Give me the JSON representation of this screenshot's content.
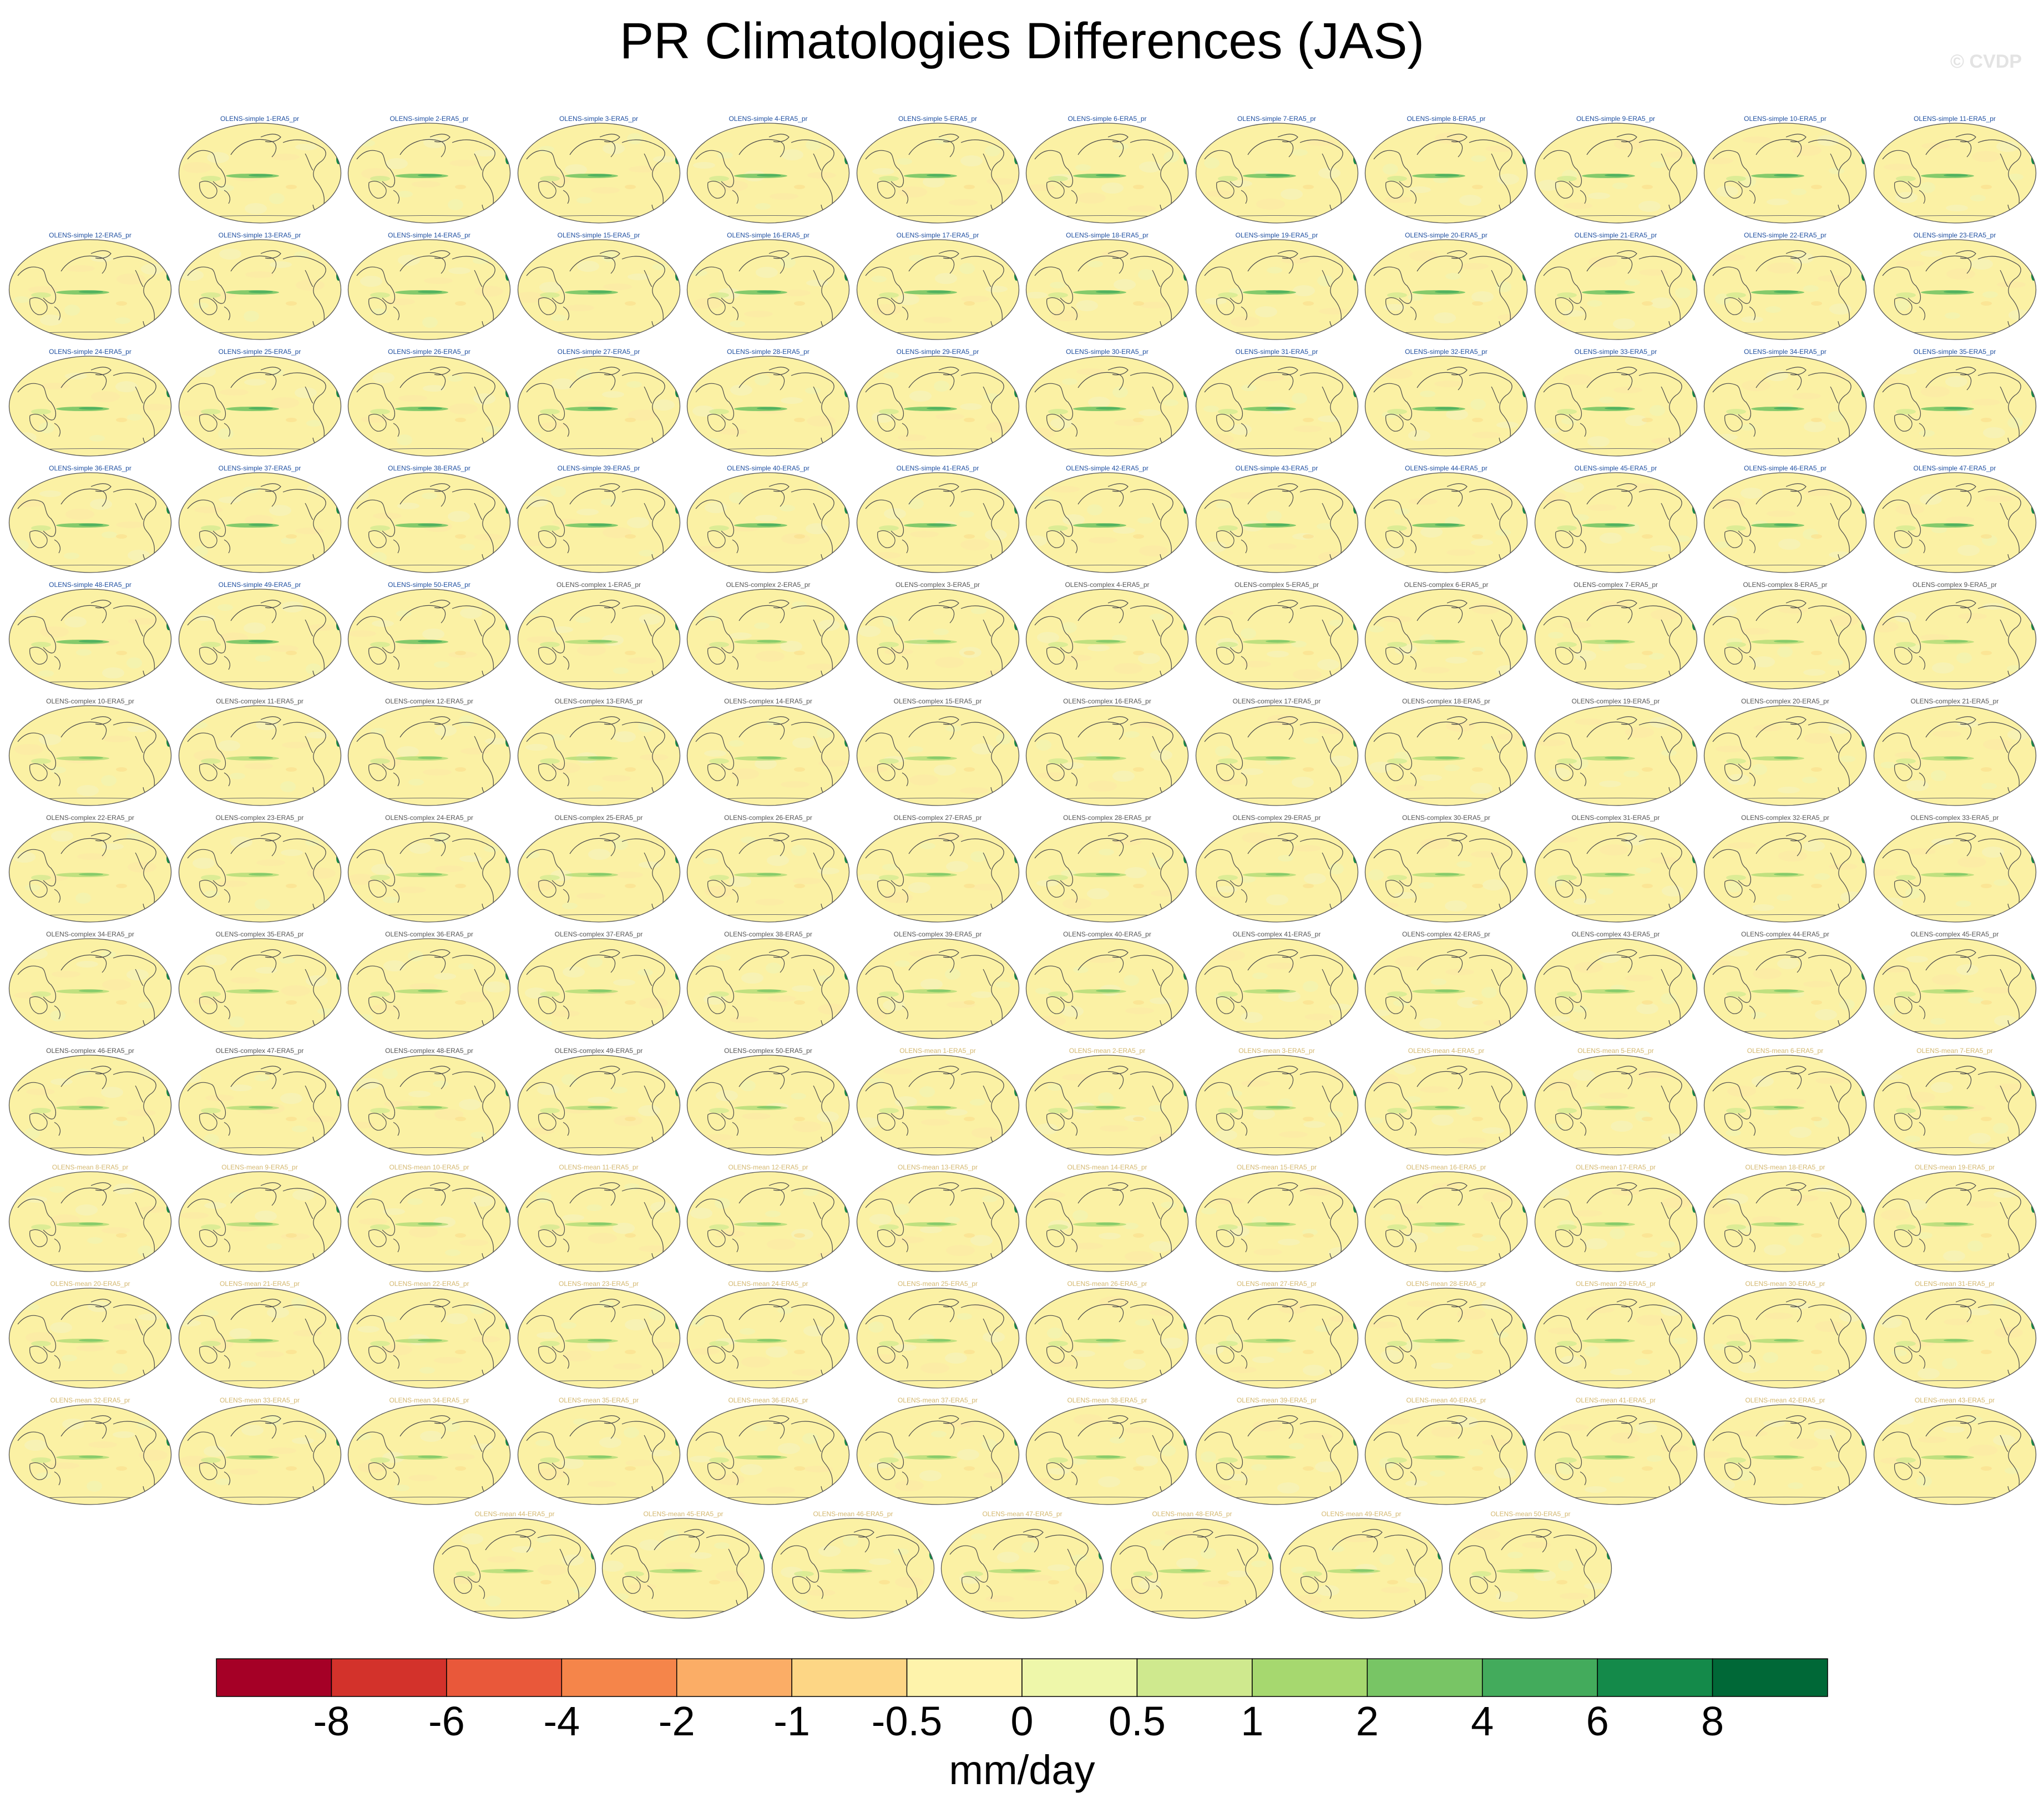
{
  "chart_data": {
    "type": "heatmap",
    "title": "PR Climatologies Differences (JAS)",
    "watermark": "© CVDP",
    "projection": "global map (Robinson-like), Pacific-centered",
    "panel_titles": [
      "OLENS-simple 1-ERA5_pr",
      "OLENS-simple 2-ERA5_pr",
      "OLENS-simple 3-ERA5_pr",
      "OLENS-simple 4-ERA5_pr",
      "OLENS-simple 5-ERA5_pr",
      "OLENS-simple 6-ERA5_pr",
      "OLENS-simple 7-ERA5_pr",
      "OLENS-simple 8-ERA5_pr",
      "OLENS-simple 9-ERA5_pr",
      "OLENS-simple 10-ERA5_pr",
      "OLENS-simple 11-ERA5_pr",
      "OLENS-simple 12-ERA5_pr",
      "OLENS-simple 13-ERA5_pr",
      "OLENS-simple 14-ERA5_pr",
      "OLENS-simple 15-ERA5_pr",
      "OLENS-simple 16-ERA5_pr",
      "OLENS-simple 17-ERA5_pr",
      "OLENS-simple 18-ERA5_pr",
      "OLENS-simple 19-ERA5_pr",
      "OLENS-simple 20-ERA5_pr",
      "OLENS-simple 21-ERA5_pr",
      "OLENS-simple 22-ERA5_pr",
      "OLENS-simple 23-ERA5_pr",
      "OLENS-simple 24-ERA5_pr",
      "OLENS-simple 25-ERA5_pr",
      "OLENS-simple 26-ERA5_pr",
      "OLENS-simple 27-ERA5_pr",
      "OLENS-simple 28-ERA5_pr",
      "OLENS-simple 29-ERA5_pr",
      "OLENS-simple 30-ERA5_pr",
      "OLENS-simple 31-ERA5_pr",
      "OLENS-simple 32-ERA5_pr",
      "OLENS-simple 33-ERA5_pr",
      "OLENS-simple 34-ERA5_pr",
      "OLENS-simple 35-ERA5_pr",
      "OLENS-simple 36-ERA5_pr",
      "OLENS-simple 37-ERA5_pr",
      "OLENS-simple 38-ERA5_pr",
      "OLENS-simple 39-ERA5_pr",
      "OLENS-simple 40-ERA5_pr",
      "OLENS-simple 41-ERA5_pr",
      "OLENS-simple 42-ERA5_pr",
      "OLENS-simple 43-ERA5_pr",
      "OLENS-simple 44-ERA5_pr",
      "OLENS-simple 45-ERA5_pr",
      "OLENS-simple 46-ERA5_pr",
      "OLENS-simple 47-ERA5_pr",
      "OLENS-simple 48-ERA5_pr",
      "OLENS-simple 49-ERA5_pr",
      "OLENS-simple 50-ERA5_pr",
      "OLENS-complex 1-ERA5_pr",
      "OLENS-complex 2-ERA5_pr",
      "OLENS-complex 3-ERA5_pr",
      "OLENS-complex 4-ERA5_pr",
      "OLENS-complex 5-ERA5_pr",
      "OLENS-complex 6-ERA5_pr",
      "OLENS-complex 7-ERA5_pr",
      "OLENS-complex 8-ERA5_pr",
      "OLENS-complex 9-ERA5_pr",
      "OLENS-complex 10-ERA5_pr",
      "OLENS-complex 11-ERA5_pr",
      "OLENS-complex 12-ERA5_pr",
      "OLENS-complex 13-ERA5_pr",
      "OLENS-complex 14-ERA5_pr",
      "OLENS-complex 15-ERA5_pr",
      "OLENS-complex 16-ERA5_pr",
      "OLENS-complex 17-ERA5_pr",
      "OLENS-complex 18-ERA5_pr",
      "OLENS-complex 19-ERA5_pr",
      "OLENS-complex 20-ERA5_pr",
      "OLENS-complex 21-ERA5_pr",
      "OLENS-complex 22-ERA5_pr",
      "OLENS-complex 23-ERA5_pr",
      "OLENS-complex 24-ERA5_pr",
      "OLENS-complex 25-ERA5_pr",
      "OLENS-complex 26-ERA5_pr",
      "OLENS-complex 27-ERA5_pr",
      "OLENS-complex 28-ERA5_pr",
      "OLENS-complex 29-ERA5_pr",
      "OLENS-complex 30-ERA5_pr",
      "OLENS-complex 31-ERA5_pr",
      "OLENS-complex 32-ERA5_pr",
      "OLENS-complex 33-ERA5_pr",
      "OLENS-complex 34-ERA5_pr",
      "OLENS-complex 35-ERA5_pr",
      "OLENS-complex 36-ERA5_pr",
      "OLENS-complex 37-ERA5_pr",
      "OLENS-complex 38-ERA5_pr",
      "OLENS-complex 39-ERA5_pr",
      "OLENS-complex 40-ERA5_pr",
      "OLENS-complex 41-ERA5_pr",
      "OLENS-complex 42-ERA5_pr",
      "OLENS-complex 43-ERA5_pr",
      "OLENS-complex 44-ERA5_pr",
      "OLENS-complex 45-ERA5_pr",
      "OLENS-complex 46-ERA5_pr",
      "OLENS-complex 47-ERA5_pr",
      "OLENS-complex 48-ERA5_pr",
      "OLENS-complex 49-ERA5_pr",
      "OLENS-complex 50-ERA5_pr",
      "OLENS-mean 1-ERA5_pr",
      "OLENS-mean 2-ERA5_pr",
      "OLENS-mean 3-ERA5_pr",
      "OLENS-mean 4-ERA5_pr",
      "OLENS-mean 5-ERA5_pr",
      "OLENS-mean 6-ERA5_pr",
      "OLENS-mean 7-ERA5_pr",
      "OLENS-mean 8-ERA5_pr",
      "OLENS-mean 9-ERA5_pr",
      "OLENS-mean 10-ERA5_pr",
      "OLENS-mean 11-ERA5_pr",
      "OLENS-mean 12-ERA5_pr",
      "OLENS-mean 13-ERA5_pr",
      "OLENS-mean 14-ERA5_pr",
      "OLENS-mean 15-ERA5_pr",
      "OLENS-mean 16-ERA5_pr",
      "OLENS-mean 17-ERA5_pr",
      "OLENS-mean 18-ERA5_pr",
      "OLENS-mean 19-ERA5_pr",
      "OLENS-mean 20-ERA5_pr",
      "OLENS-mean 21-ERA5_pr",
      "OLENS-mean 22-ERA5_pr",
      "OLENS-mean 23-ERA5_pr",
      "OLENS-mean 24-ERA5_pr",
      "OLENS-mean 25-ERA5_pr",
      "OLENS-mean 26-ERA5_pr",
      "OLENS-mean 27-ERA5_pr",
      "OLENS-mean 28-ERA5_pr",
      "OLENS-mean 29-ERA5_pr",
      "OLENS-mean 30-ERA5_pr",
      "OLENS-mean 31-ERA5_pr",
      "OLENS-mean 32-ERA5_pr",
      "OLENS-mean 33-ERA5_pr",
      "OLENS-mean 34-ERA5_pr",
      "OLENS-mean 35-ERA5_pr",
      "OLENS-mean 36-ERA5_pr",
      "OLENS-mean 37-ERA5_pr",
      "OLENS-mean 38-ERA5_pr",
      "OLENS-mean 39-ERA5_pr",
      "OLENS-mean 40-ERA5_pr",
      "OLENS-mean 41-ERA5_pr",
      "OLENS-mean 42-ERA5_pr",
      "OLENS-mean 43-ERA5_pr",
      "OLENS-mean 44-ERA5_pr",
      "OLENS-mean 45-ERA5_pr",
      "OLENS-mean 46-ERA5_pr",
      "OLENS-mean 47-ERA5_pr",
      "OLENS-mean 48-ERA5_pr",
      "OLENS-mean 49-ERA5_pr",
      "OLENS-mean 50-ERA5_pr"
    ],
    "row_counts": [
      11,
      12,
      12,
      12,
      12,
      12,
      12,
      12,
      12,
      12,
      12,
      12,
      7
    ],
    "title_colors": {
      "OLENS-simple": "#1f4fa0",
      "OLENS-complex": "#555555",
      "OLENS-mean": "#d4b870"
    },
    "colorbar": {
      "units": "mm/day",
      "tick_labels": [
        "-8",
        "-6",
        "-4",
        "-2",
        "-1",
        "-0.5",
        "0",
        "0.5",
        "1",
        "2",
        "4",
        "6",
        "8"
      ],
      "colors": [
        "#a50026",
        "#d3322b",
        "#e9583a",
        "#f5854a",
        "#fbad66",
        "#fdd685",
        "#fef3ab",
        "#eef7aa",
        "#cfe98e",
        "#a6d86f",
        "#78c565",
        "#43ab5c",
        "#148a4a",
        "#006837"
      ]
    },
    "background_value_color": "#fbf1a4"
  }
}
